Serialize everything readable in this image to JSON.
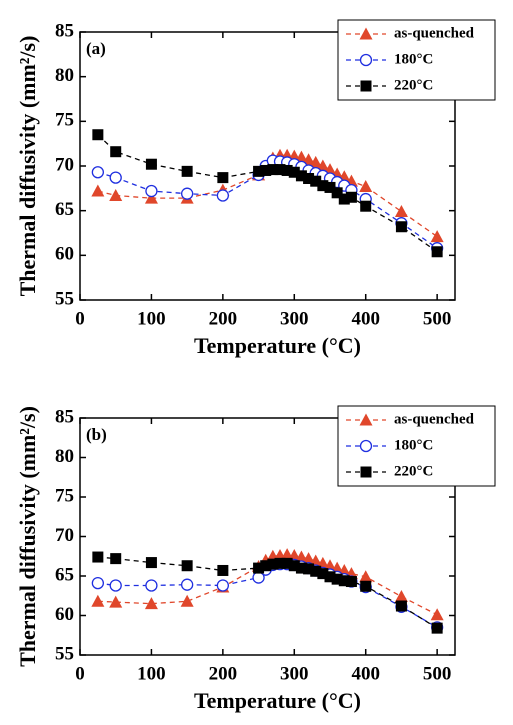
{
  "chart_data": [
    {
      "type": "line",
      "panel_label": "(a)",
      "xlabel": "Temperature (°C)",
      "ylabel": "Thermal diffusivity (mm²/s)",
      "x": [
        25,
        50,
        100,
        150,
        200,
        250,
        260,
        270,
        280,
        290,
        300,
        310,
        320,
        330,
        340,
        350,
        360,
        370,
        380,
        400,
        450,
        500
      ],
      "series": [
        {
          "name": "as-quenched",
          "color": "#e0472b",
          "marker": "triangle",
          "values": [
            67.2,
            66.7,
            66.4,
            66.4,
            67.3,
            69.0,
            69.9,
            70.9,
            71.2,
            71.2,
            71.1,
            71.0,
            70.7,
            70.4,
            70.0,
            69.6,
            69.1,
            68.8,
            68.3,
            67.7,
            64.9,
            62.1
          ]
        },
        {
          "name": "180°C",
          "color": "#1f2fe0",
          "marker": "circle-open",
          "values": [
            69.3,
            68.7,
            67.2,
            66.9,
            66.7,
            69.0,
            70.0,
            70.6,
            70.5,
            70.4,
            70.2,
            69.9,
            69.5,
            69.2,
            68.9,
            68.6,
            68.2,
            67.8,
            67.3,
            66.3,
            63.6,
            60.8
          ]
        },
        {
          "name": "220°C",
          "color": "#000000",
          "marker": "square",
          "values": [
            73.5,
            71.6,
            70.2,
            69.4,
            68.7,
            69.4,
            69.5,
            69.6,
            69.6,
            69.5,
            69.3,
            68.9,
            68.6,
            68.3,
            67.8,
            67.6,
            67.0,
            66.3,
            66.5,
            65.5,
            63.2,
            60.4
          ]
        }
      ],
      "xlim": [
        0,
        525
      ],
      "ylim": [
        55,
        85
      ],
      "xticks": [
        0,
        100,
        200,
        300,
        400,
        500
      ],
      "yticks": [
        55,
        60,
        65,
        70,
        75,
        80,
        85
      ],
      "legend": "upper right",
      "line_style": "dashed"
    },
    {
      "type": "line",
      "panel_label": "(b)",
      "xlabel": "Temperature (°C)",
      "ylabel": "Thermal diffusivity (mm²/s)",
      "x": [
        25,
        50,
        100,
        150,
        200,
        250,
        260,
        270,
        280,
        290,
        300,
        310,
        320,
        330,
        340,
        350,
        360,
        370,
        380,
        400,
        450,
        500
      ],
      "series": [
        {
          "name": "as-quenched",
          "color": "#e0472b",
          "marker": "triangle",
          "values": [
            61.8,
            61.7,
            61.5,
            61.8,
            63.6,
            66.2,
            67.0,
            67.5,
            67.6,
            67.7,
            67.6,
            67.4,
            67.2,
            66.9,
            66.6,
            66.3,
            66.0,
            65.7,
            65.3,
            64.9,
            62.4,
            60.1
          ]
        },
        {
          "name": "180°C",
          "color": "#1f2fe0",
          "marker": "circle-open",
          "values": [
            64.1,
            63.8,
            63.8,
            63.9,
            63.8,
            64.8,
            65.8,
            66.4,
            66.5,
            66.5,
            66.4,
            66.2,
            66.0,
            65.7,
            65.4,
            65.2,
            64.9,
            64.6,
            64.3,
            63.6,
            61.1,
            58.5
          ]
        },
        {
          "name": "220°C",
          "color": "#000000",
          "marker": "square",
          "values": [
            67.4,
            67.2,
            66.7,
            66.3,
            65.7,
            66.0,
            66.3,
            66.5,
            66.6,
            66.6,
            66.3,
            66.0,
            65.9,
            65.6,
            65.3,
            64.9,
            64.6,
            64.4,
            64.3,
            63.7,
            61.2,
            58.4
          ]
        }
      ],
      "xlim": [
        0,
        525
      ],
      "ylim": [
        55,
        85
      ],
      "xticks": [
        0,
        100,
        200,
        300,
        400,
        500
      ],
      "yticks": [
        55,
        60,
        65,
        70,
        75,
        80,
        85
      ],
      "legend": "upper right",
      "line_style": "dashed"
    }
  ]
}
